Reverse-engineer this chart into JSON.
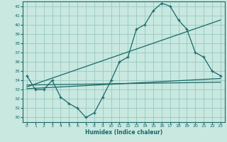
{
  "xlabel": "Humidex (Indice chaleur)",
  "bg_color": "#c8e8e0",
  "grid_color": "#98c8c0",
  "line_color": "#1a6868",
  "xlim": [
    -0.5,
    23.5
  ],
  "ylim": [
    29.5,
    42.5
  ],
  "xticks": [
    0,
    1,
    2,
    3,
    4,
    5,
    6,
    7,
    8,
    9,
    10,
    11,
    12,
    13,
    14,
    15,
    16,
    17,
    18,
    19,
    20,
    21,
    22,
    23
  ],
  "yticks": [
    30,
    31,
    32,
    33,
    34,
    35,
    36,
    37,
    38,
    39,
    40,
    41,
    42
  ],
  "curve1_x": [
    0,
    1,
    2,
    3,
    4,
    5,
    6,
    7,
    8,
    9,
    10,
    11,
    12,
    13,
    14,
    15,
    16,
    17,
    18,
    19,
    20,
    21,
    22,
    23
  ],
  "curve1_y": [
    34.5,
    33.0,
    33.0,
    34.0,
    32.2,
    31.5,
    31.0,
    30.0,
    30.5,
    32.2,
    34.0,
    36.0,
    36.5,
    39.5,
    40.0,
    41.5,
    42.3,
    42.0,
    40.5,
    39.5,
    37.0,
    36.5,
    35.0,
    34.5
  ],
  "line2_x": [
    0,
    23
  ],
  "line2_y": [
    33.1,
    34.2
  ],
  "line3_x": [
    0,
    23
  ],
  "line3_y": [
    33.3,
    40.5
  ],
  "line4_x": [
    0,
    23
  ],
  "line4_y": [
    33.5,
    33.8
  ]
}
